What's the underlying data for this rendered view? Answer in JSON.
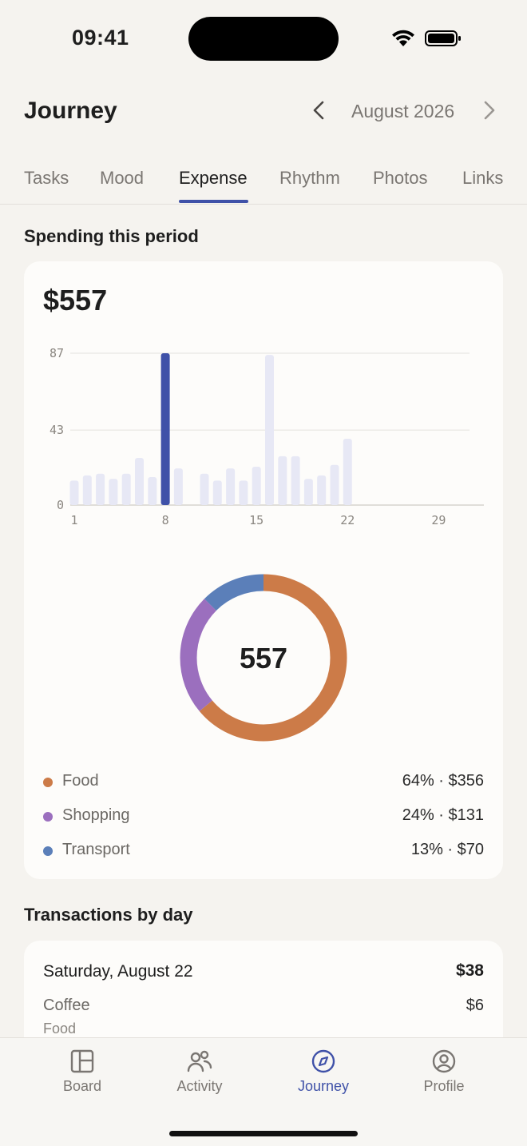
{
  "status": {
    "time": "09:41"
  },
  "header": {
    "title": "Journey",
    "month": "August 2026"
  },
  "tabs": [
    {
      "label": "Tasks",
      "active": false
    },
    {
      "label": "Mood",
      "active": false
    },
    {
      "label": "Expense",
      "active": true
    },
    {
      "label": "Rhythm",
      "active": false
    },
    {
      "label": "Photos",
      "active": false
    },
    {
      "label": "Links",
      "active": false
    }
  ],
  "spending": {
    "section_title": "Spending this period",
    "total": "$557",
    "donut_center": "557",
    "legend": [
      {
        "label": "Food",
        "value": "64% · $356",
        "color": "#cc7b48"
      },
      {
        "label": "Shopping",
        "value": "24% · $131",
        "color": "#9b6fbe"
      },
      {
        "label": "Transport",
        "value": "13% · $70",
        "color": "#5b7fb9"
      }
    ]
  },
  "chart_data": [
    {
      "type": "bar",
      "x": [
        1,
        2,
        3,
        4,
        5,
        6,
        7,
        8,
        9,
        10,
        11,
        12,
        13,
        14,
        15,
        16,
        17,
        18,
        19,
        20,
        21,
        22,
        23,
        24,
        25,
        26,
        27,
        28,
        29,
        30,
        31
      ],
      "values": [
        14,
        17,
        18,
        15,
        18,
        27,
        16,
        87,
        21,
        0,
        18,
        14,
        21,
        14,
        22,
        86,
        28,
        28,
        15,
        17,
        23,
        38,
        0,
        0,
        0,
        0,
        0,
        0,
        0,
        0,
        0
      ],
      "highlight_x": 8,
      "yticks": [
        "0",
        "43",
        "87"
      ],
      "xticks": [
        "1",
        "8",
        "15",
        "22",
        "29"
      ],
      "ylim": [
        0,
        87
      ],
      "grid": true,
      "colors": {
        "highlight": "#3f51a8",
        "normal": "#e7e8f5"
      }
    },
    {
      "type": "pie",
      "donut": true,
      "categories": [
        "Food",
        "Shopping",
        "Transport"
      ],
      "values": [
        356,
        131,
        70
      ],
      "colors": [
        "#cc7b48",
        "#9b6fbe",
        "#5b7fb9"
      ]
    }
  ],
  "transactions": {
    "section_title": "Transactions by day",
    "day": "Saturday, August 22",
    "day_total": "$38",
    "items": [
      {
        "name": "Coffee",
        "amount": "$6",
        "category": "Food"
      }
    ]
  },
  "tabbar": [
    {
      "label": "Board",
      "icon": "board-icon",
      "active": false
    },
    {
      "label": "Activity",
      "icon": "people-icon",
      "active": false
    },
    {
      "label": "Journey",
      "icon": "compass-icon",
      "active": true
    },
    {
      "label": "Profile",
      "icon": "user-circle-icon",
      "active": false
    }
  ]
}
